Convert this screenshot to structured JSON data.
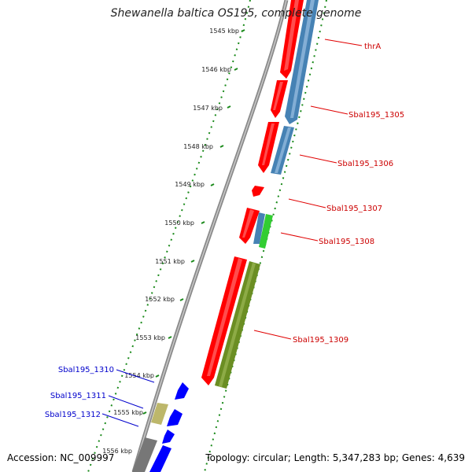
{
  "title": "Shewanella baltica OS195, complete genome",
  "footer": {
    "accession": "Accession: NC_009997",
    "summary": "Topology: circular; Length: 5,347,283 bp; Genes: 4,639"
  },
  "colors": {
    "forward_cds": "#ff0000",
    "reverse_cds": "#4682b4",
    "blue_cds": "#0000ff",
    "olive_feature": "#6b8e23",
    "khaki_feature": "#bdb76b",
    "green_feature": "#32cd32",
    "gray_feature": "#777777",
    "backbone": "#8a8a8a",
    "tick_green": "#1a8a1a",
    "label_red": "#cc0000",
    "label_blue": "#0000cc"
  },
  "ticks": [
    "1545 kbp",
    "1546 kbp",
    "1547 kbp",
    "1548 kbp",
    "1549 kbp",
    "1550 kbp",
    "1551 kbp",
    "1552 kbp",
    "1553 kbp",
    "1554 kbp",
    "1555 kbp",
    "1556 kbp"
  ],
  "right_labels": [
    "thrA",
    "Sbal195_1305",
    "Sbal195_1306",
    "Sbal195_1307",
    "Sbal195_1308",
    "Sbal195_1309"
  ],
  "left_labels": [
    "Sbal195_1310",
    "Sbal195_1311",
    "Sbal195_1312"
  ]
}
